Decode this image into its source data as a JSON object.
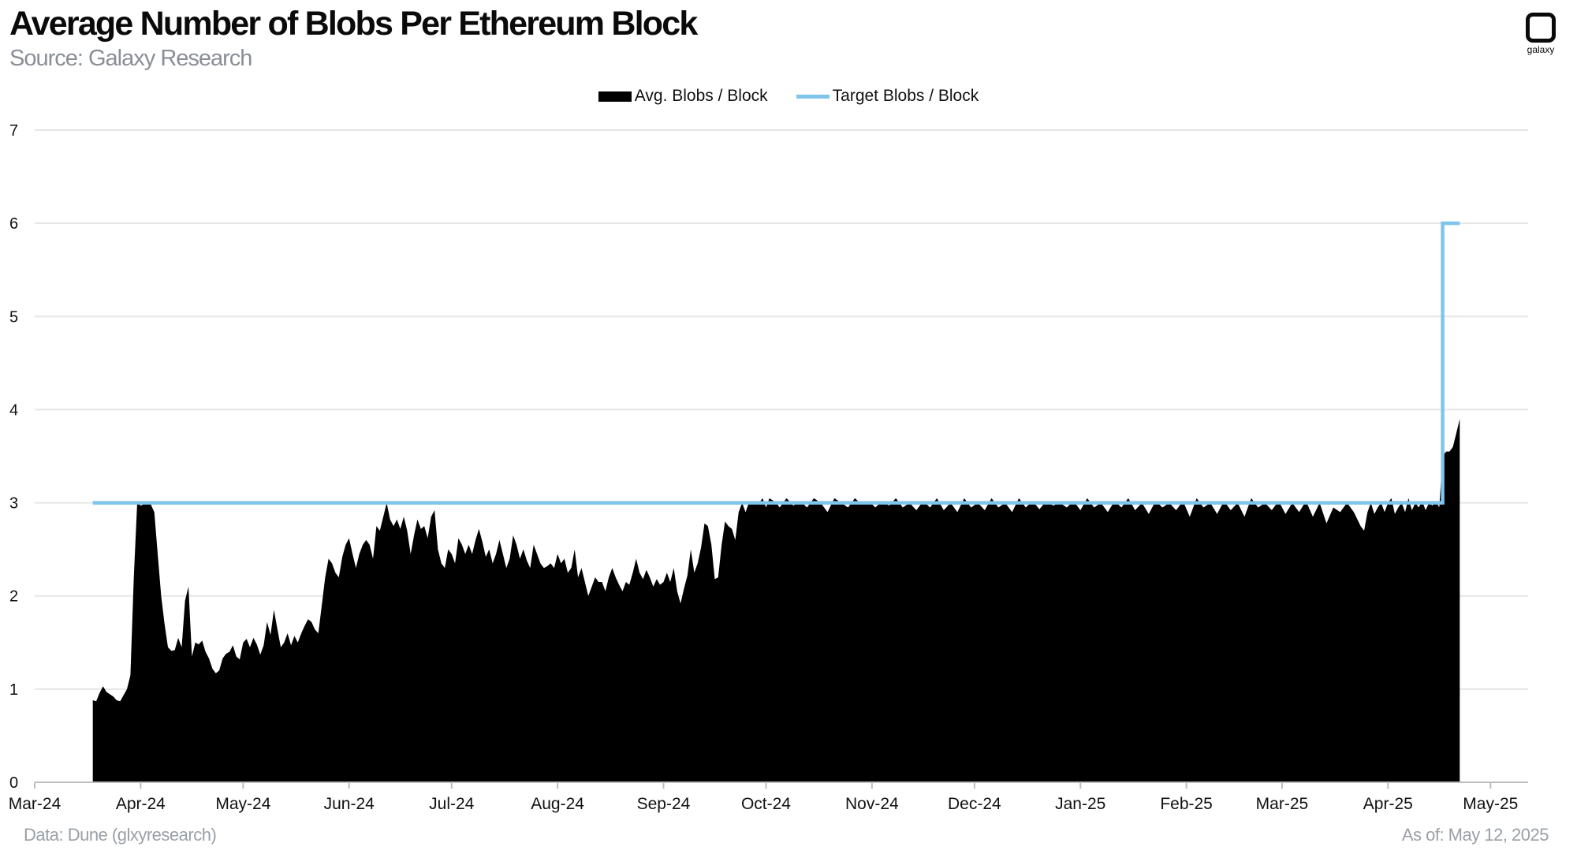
{
  "header": {
    "title": "Average Number of Blobs Per Ethereum Block",
    "subtitle": "Source: Galaxy Research",
    "logo_text": "galaxy"
  },
  "footer": {
    "data_source": "Data: Dune (glxyresearch)",
    "as_of": "As of: May 12, 2025"
  },
  "colors": {
    "avg_fill": "#000000",
    "target_line": "#7ec4ec",
    "grid": "#e6e6e6",
    "axis": "#bdbdbd"
  },
  "chart_data": {
    "type": "area",
    "title": "Average Number of Blobs Per Ethereum Block",
    "subtitle": "Source: Galaxy Research",
    "xlabel": "",
    "ylabel": "",
    "ylim": [
      0,
      7
    ],
    "yticks": [
      "0",
      "1",
      "2",
      "3",
      "4",
      "5",
      "6",
      "7"
    ],
    "x_tick_labels": [
      "Mar-24",
      "Apr-24",
      "May-24",
      "Jun-24",
      "Jul-24",
      "Aug-24",
      "Sep-24",
      "Oct-24",
      "Nov-24",
      "Dec-24",
      "Jan-25",
      "Feb-25",
      "Mar-25",
      "Apr-25",
      "May-25"
    ],
    "x_range_days": [
      0,
      437
    ],
    "x_tick_days": [
      0,
      31,
      61,
      92,
      122,
      153,
      184,
      214,
      245,
      275,
      306,
      337,
      365,
      396,
      426
    ],
    "grid": true,
    "legend_position": "top-center",
    "series": [
      {
        "name": "Avg. Blobs / Block",
        "kind": "area",
        "points": [
          [
            17,
            0.88
          ],
          [
            18,
            0.87
          ],
          [
            19,
            0.96
          ],
          [
            20,
            1.03
          ],
          [
            21,
            0.97
          ],
          [
            23,
            0.92
          ],
          [
            24,
            0.88
          ],
          [
            25,
            0.87
          ],
          [
            27,
            1.0
          ],
          [
            28,
            1.15
          ],
          [
            29,
            2.2
          ],
          [
            30,
            3.0
          ],
          [
            31,
            2.97
          ],
          [
            33,
            3.0
          ],
          [
            34,
            2.98
          ],
          [
            35,
            2.9
          ],
          [
            36,
            2.45
          ],
          [
            37,
            2.0
          ],
          [
            38,
            1.7
          ],
          [
            39,
            1.45
          ],
          [
            40,
            1.41
          ],
          [
            41,
            1.42
          ],
          [
            42,
            1.55
          ],
          [
            43,
            1.45
          ],
          [
            44,
            1.95
          ],
          [
            45,
            2.1
          ],
          [
            46,
            1.35
          ],
          [
            47,
            1.5
          ],
          [
            48,
            1.48
          ],
          [
            49,
            1.52
          ],
          [
            50,
            1.4
          ],
          [
            51,
            1.33
          ],
          [
            52,
            1.22
          ],
          [
            53,
            1.17
          ],
          [
            54,
            1.2
          ],
          [
            55,
            1.33
          ],
          [
            56,
            1.38
          ],
          [
            57,
            1.4
          ],
          [
            58,
            1.47
          ],
          [
            59,
            1.35
          ],
          [
            60,
            1.32
          ],
          [
            61,
            1.5
          ],
          [
            62,
            1.54
          ],
          [
            63,
            1.45
          ],
          [
            64,
            1.55
          ],
          [
            65,
            1.48
          ],
          [
            66,
            1.37
          ],
          [
            67,
            1.47
          ],
          [
            68,
            1.72
          ],
          [
            69,
            1.58
          ],
          [
            70,
            1.85
          ],
          [
            71,
            1.65
          ],
          [
            72,
            1.45
          ],
          [
            73,
            1.5
          ],
          [
            74,
            1.6
          ],
          [
            75,
            1.47
          ],
          [
            76,
            1.57
          ],
          [
            77,
            1.5
          ],
          [
            78,
            1.6
          ],
          [
            79,
            1.68
          ],
          [
            80,
            1.75
          ],
          [
            81,
            1.72
          ],
          [
            82,
            1.64
          ],
          [
            83,
            1.6
          ],
          [
            84,
            1.9
          ],
          [
            85,
            2.2
          ],
          [
            86,
            2.4
          ],
          [
            87,
            2.35
          ],
          [
            88,
            2.25
          ],
          [
            89,
            2.2
          ],
          [
            90,
            2.42
          ],
          [
            91,
            2.55
          ],
          [
            92,
            2.62
          ],
          [
            93,
            2.45
          ],
          [
            94,
            2.3
          ],
          [
            95,
            2.45
          ],
          [
            96,
            2.55
          ],
          [
            97,
            2.6
          ],
          [
            98,
            2.55
          ],
          [
            99,
            2.4
          ],
          [
            100,
            2.75
          ],
          [
            101,
            2.7
          ],
          [
            102,
            2.85
          ],
          [
            103,
            3.0
          ],
          [
            104,
            2.82
          ],
          [
            105,
            2.75
          ],
          [
            106,
            2.82
          ],
          [
            107,
            2.72
          ],
          [
            108,
            2.85
          ],
          [
            109,
            2.7
          ],
          [
            110,
            2.45
          ],
          [
            111,
            2.65
          ],
          [
            112,
            2.82
          ],
          [
            113,
            2.72
          ],
          [
            114,
            2.75
          ],
          [
            115,
            2.62
          ],
          [
            116,
            2.85
          ],
          [
            117,
            2.92
          ],
          [
            118,
            2.5
          ],
          [
            119,
            2.35
          ],
          [
            120,
            2.3
          ],
          [
            121,
            2.5
          ],
          [
            122,
            2.45
          ],
          [
            123,
            2.35
          ],
          [
            124,
            2.62
          ],
          [
            125,
            2.55
          ],
          [
            126,
            2.45
          ],
          [
            127,
            2.55
          ],
          [
            128,
            2.45
          ],
          [
            129,
            2.6
          ],
          [
            130,
            2.72
          ],
          [
            131,
            2.58
          ],
          [
            132,
            2.42
          ],
          [
            133,
            2.5
          ],
          [
            134,
            2.35
          ],
          [
            135,
            2.45
          ],
          [
            136,
            2.6
          ],
          [
            137,
            2.45
          ],
          [
            138,
            2.3
          ],
          [
            139,
            2.4
          ],
          [
            140,
            2.65
          ],
          [
            141,
            2.55
          ],
          [
            142,
            2.4
          ],
          [
            143,
            2.5
          ],
          [
            144,
            2.38
          ],
          [
            145,
            2.3
          ],
          [
            146,
            2.55
          ],
          [
            147,
            2.45
          ],
          [
            148,
            2.35
          ],
          [
            149,
            2.3
          ],
          [
            150,
            2.32
          ],
          [
            151,
            2.35
          ],
          [
            152,
            2.3
          ],
          [
            153,
            2.45
          ],
          [
            154,
            2.35
          ],
          [
            155,
            2.4
          ],
          [
            156,
            2.25
          ],
          [
            157,
            2.3
          ],
          [
            158,
            2.5
          ],
          [
            159,
            2.2
          ],
          [
            160,
            2.3
          ],
          [
            161,
            2.15
          ],
          [
            162,
            2.0
          ],
          [
            163,
            2.1
          ],
          [
            164,
            2.2
          ],
          [
            165,
            2.15
          ],
          [
            166,
            2.15
          ],
          [
            167,
            2.05
          ],
          [
            168,
            2.2
          ],
          [
            169,
            2.3
          ],
          [
            170,
            2.2
          ],
          [
            171,
            2.12
          ],
          [
            172,
            2.05
          ],
          [
            173,
            2.15
          ],
          [
            174,
            2.12
          ],
          [
            175,
            2.25
          ],
          [
            176,
            2.4
          ],
          [
            177,
            2.25
          ],
          [
            178,
            2.18
          ],
          [
            179,
            2.28
          ],
          [
            180,
            2.2
          ],
          [
            181,
            2.1
          ],
          [
            182,
            2.18
          ],
          [
            183,
            2.12
          ],
          [
            184,
            2.15
          ],
          [
            185,
            2.25
          ],
          [
            186,
            2.15
          ],
          [
            187,
            2.3
          ],
          [
            188,
            2.05
          ],
          [
            189,
            1.92
          ],
          [
            190,
            2.08
          ],
          [
            191,
            2.22
          ],
          [
            192,
            2.5
          ],
          [
            193,
            2.25
          ],
          [
            194,
            2.35
          ],
          [
            195,
            2.52
          ],
          [
            196,
            2.78
          ],
          [
            197,
            2.75
          ],
          [
            198,
            2.55
          ],
          [
            199,
            2.18
          ],
          [
            200,
            2.2
          ],
          [
            201,
            2.55
          ],
          [
            202,
            2.8
          ],
          [
            203,
            2.75
          ],
          [
            204,
            2.72
          ],
          [
            205,
            2.6
          ],
          [
            206,
            2.9
          ],
          [
            207,
            3.0
          ],
          [
            208,
            2.9
          ],
          [
            209,
            3.0
          ],
          [
            212,
            3.0
          ],
          [
            213,
            3.05
          ],
          [
            214,
            2.95
          ],
          [
            215,
            3.05
          ],
          [
            217,
            3.0
          ],
          [
            218,
            2.95
          ],
          [
            220,
            3.05
          ],
          [
            222,
            2.97
          ],
          [
            224,
            3.02
          ],
          [
            226,
            2.95
          ],
          [
            228,
            3.05
          ],
          [
            230,
            3.0
          ],
          [
            232,
            2.9
          ],
          [
            234,
            3.05
          ],
          [
            236,
            3.0
          ],
          [
            238,
            2.95
          ],
          [
            240,
            3.05
          ],
          [
            242,
            2.98
          ],
          [
            244,
            3.02
          ],
          [
            246,
            2.95
          ],
          [
            248,
            3.02
          ],
          [
            250,
            2.97
          ],
          [
            252,
            3.05
          ],
          [
            254,
            2.95
          ],
          [
            256,
            3.0
          ],
          [
            258,
            2.92
          ],
          [
            260,
            3.02
          ],
          [
            262,
            2.95
          ],
          [
            264,
            3.05
          ],
          [
            266,
            2.92
          ],
          [
            268,
            3.0
          ],
          [
            270,
            2.9
          ],
          [
            272,
            3.05
          ],
          [
            274,
            2.95
          ],
          [
            276,
            3.0
          ],
          [
            278,
            2.92
          ],
          [
            280,
            3.05
          ],
          [
            282,
            2.95
          ],
          [
            284,
            3.0
          ],
          [
            286,
            2.9
          ],
          [
            288,
            3.05
          ],
          [
            290,
            2.95
          ],
          [
            292,
            3.02
          ],
          [
            294,
            2.93
          ],
          [
            296,
            3.02
          ],
          [
            298,
            2.97
          ],
          [
            300,
            3.0
          ],
          [
            302,
            2.95
          ],
          [
            304,
            3.02
          ],
          [
            306,
            2.92
          ],
          [
            308,
            3.05
          ],
          [
            310,
            2.95
          ],
          [
            312,
            3.0
          ],
          [
            314,
            2.9
          ],
          [
            316,
            3.02
          ],
          [
            318,
            2.95
          ],
          [
            320,
            3.05
          ],
          [
            322,
            2.92
          ],
          [
            324,
            3.0
          ],
          [
            326,
            2.88
          ],
          [
            328,
            3.02
          ],
          [
            330,
            2.95
          ],
          [
            332,
            3.0
          ],
          [
            334,
            2.92
          ],
          [
            336,
            3.02
          ],
          [
            338,
            2.85
          ],
          [
            340,
            3.05
          ],
          [
            342,
            2.95
          ],
          [
            344,
            3.0
          ],
          [
            346,
            2.88
          ],
          [
            348,
            3.02
          ],
          [
            350,
            2.92
          ],
          [
            352,
            3.0
          ],
          [
            354,
            2.85
          ],
          [
            356,
            3.05
          ],
          [
            358,
            2.95
          ],
          [
            360,
            3.0
          ],
          [
            362,
            2.92
          ],
          [
            364,
            3.02
          ],
          [
            366,
            2.88
          ],
          [
            368,
            3.0
          ],
          [
            370,
            2.9
          ],
          [
            372,
            3.02
          ],
          [
            374,
            2.85
          ],
          [
            376,
            3.0
          ],
          [
            378,
            2.78
          ],
          [
            380,
            2.95
          ],
          [
            382,
            2.9
          ],
          [
            384,
            3.0
          ],
          [
            386,
            2.9
          ],
          [
            388,
            2.75
          ],
          [
            389,
            2.7
          ],
          [
            390,
            2.9
          ],
          [
            391,
            3.0
          ],
          [
            392,
            2.88
          ],
          [
            393,
            2.95
          ],
          [
            394,
            3.0
          ],
          [
            395,
            2.9
          ],
          [
            396,
            3.0
          ],
          [
            397,
            3.05
          ],
          [
            398,
            2.88
          ],
          [
            399,
            2.95
          ],
          [
            400,
            3.0
          ],
          [
            401,
            2.9
          ],
          [
            402,
            3.05
          ],
          [
            403,
            2.92
          ],
          [
            404,
            3.0
          ],
          [
            405,
            2.95
          ],
          [
            406,
            3.02
          ],
          [
            407,
            2.92
          ],
          [
            408,
            3.0
          ],
          [
            409,
            2.97
          ],
          [
            410,
            3.02
          ],
          [
            411,
            2.95
          ],
          [
            412,
            3.5
          ],
          [
            413,
            3.55
          ],
          [
            414,
            3.55
          ],
          [
            415,
            3.6
          ],
          [
            416,
            3.75
          ],
          [
            417,
            3.9
          ]
        ]
      },
      {
        "name": "Target Blobs / Block",
        "kind": "step-line",
        "points": [
          [
            17,
            3
          ],
          [
            412,
            3
          ],
          [
            412,
            6
          ],
          [
            417,
            6
          ]
        ]
      }
    ]
  }
}
